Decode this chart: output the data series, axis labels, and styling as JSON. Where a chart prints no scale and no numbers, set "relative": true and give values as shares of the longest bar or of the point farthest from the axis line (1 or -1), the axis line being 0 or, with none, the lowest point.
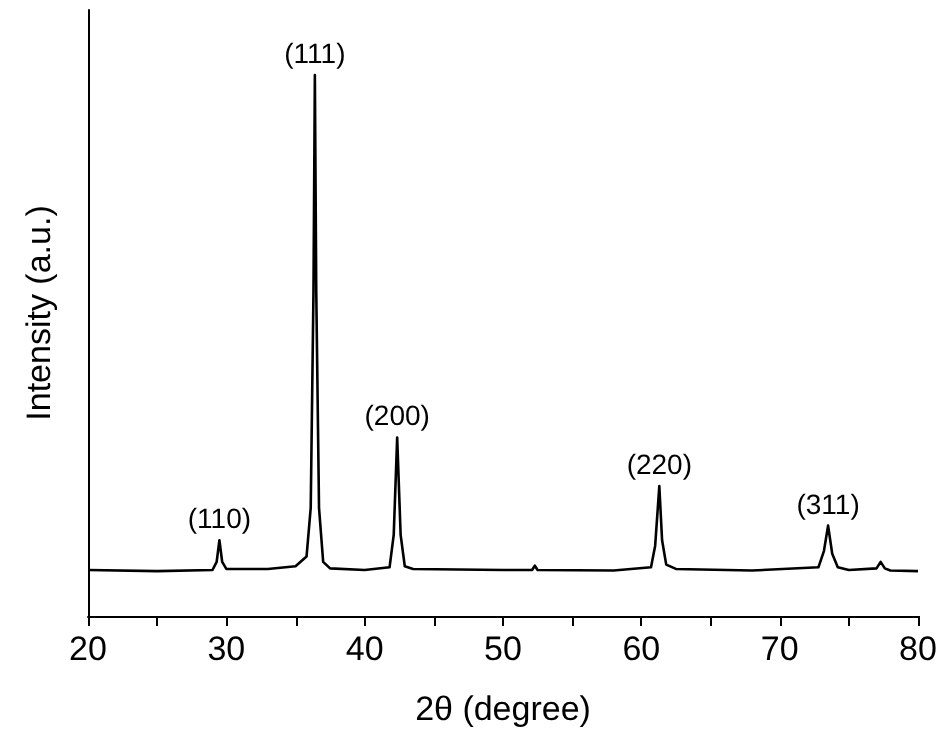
{
  "chart_data": {
    "type": "line",
    "relative": true,
    "xlabel": "2θ (degree)",
    "ylabel": "Intensity (a.u.)",
    "xlim": [
      20,
      80
    ],
    "xticks": [
      20,
      {
        "value": 25,
        "label": null
      },
      30,
      {
        "value": 35,
        "label": null
      },
      40,
      {
        "value": 45,
        "label": null
      },
      50,
      {
        "value": 55,
        "label": null
      },
      60,
      {
        "value": 65,
        "label": null
      },
      70,
      {
        "value": 75,
        "label": null
      },
      80
    ],
    "grid": false,
    "marker": "none",
    "line_style": "solid",
    "x": [
      20,
      25,
      29,
      29.3,
      29.5,
      29.7,
      30,
      33,
      35,
      35.8,
      36.1,
      36.3,
      36.4,
      36.5,
      36.7,
      37,
      37.5,
      40,
      41.8,
      42.1,
      42.35,
      42.6,
      42.9,
      43.5,
      50,
      52.1,
      52.3,
      52.5,
      58,
      60.7,
      61.0,
      61.3,
      61.5,
      61.8,
      62.5,
      68,
      72.8,
      73.2,
      73.5,
      73.8,
      74.2,
      75,
      77.0,
      77.3,
      77.6,
      78,
      80
    ],
    "series": [
      {
        "color": "#000000",
        "values": [
          0.085,
          0.083,
          0.085,
          0.1,
          0.14,
          0.1,
          0.087,
          0.087,
          0.092,
          0.11,
          0.2,
          0.6,
          1,
          0.6,
          0.2,
          0.1,
          0.088,
          0.085,
          0.09,
          0.15,
          0.33,
          0.15,
          0.092,
          0.087,
          0.085,
          0.085,
          0.093,
          0.085,
          0.084,
          0.09,
          0.13,
          0.24,
          0.14,
          0.095,
          0.087,
          0.084,
          0.09,
          0.12,
          0.167,
          0.115,
          0.09,
          0.085,
          0.088,
          0.1,
          0.088,
          0.084,
          0.083
        ]
      }
    ],
    "annotations": [
      {
        "text": "(110)",
        "x": 29.5,
        "y": 0.14
      },
      {
        "text": "(111)",
        "x": 36.4,
        "y": 1
      },
      {
        "text": "(200)",
        "x": 42.35,
        "y": 0.33
      },
      {
        "text": "(220)",
        "x": 61.3,
        "y": 0.24
      },
      {
        "text": "(311)",
        "x": 73.5,
        "y": 0.167
      }
    ]
  }
}
